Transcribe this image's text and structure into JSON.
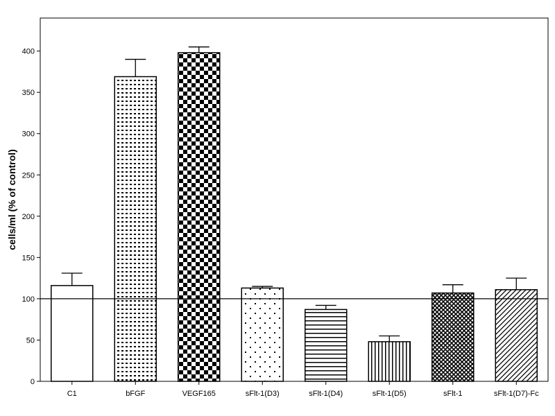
{
  "chart_data": {
    "type": "bar",
    "title": "",
    "xlabel": "",
    "ylabel": "cells/ml (% of control)",
    "ylim": [
      0,
      440
    ],
    "yticks": [
      0,
      50,
      100,
      150,
      200,
      250,
      300,
      350,
      400
    ],
    "reference_line": 100,
    "grid": false,
    "categories": [
      "C1",
      "bFGF",
      "VEGF165",
      "sFlt-1(D3)",
      "sFlt-1(D4)",
      "sFlt-1(D5)",
      "sFlt-1",
      "sFlt-1(D7)-Fc"
    ],
    "values": [
      116,
      369,
      398,
      113,
      87,
      48,
      107,
      111
    ],
    "errors": [
      15,
      21,
      7,
      2,
      5,
      7,
      10,
      14
    ],
    "fill_patterns": [
      "solid-white",
      "dots-dense",
      "checker",
      "dots-sparse",
      "horizontal-lines",
      "vertical-lines",
      "crosshatch",
      "diagonal-lines"
    ],
    "colors": {
      "ink": "#000000",
      "background": "#ffffff"
    }
  }
}
